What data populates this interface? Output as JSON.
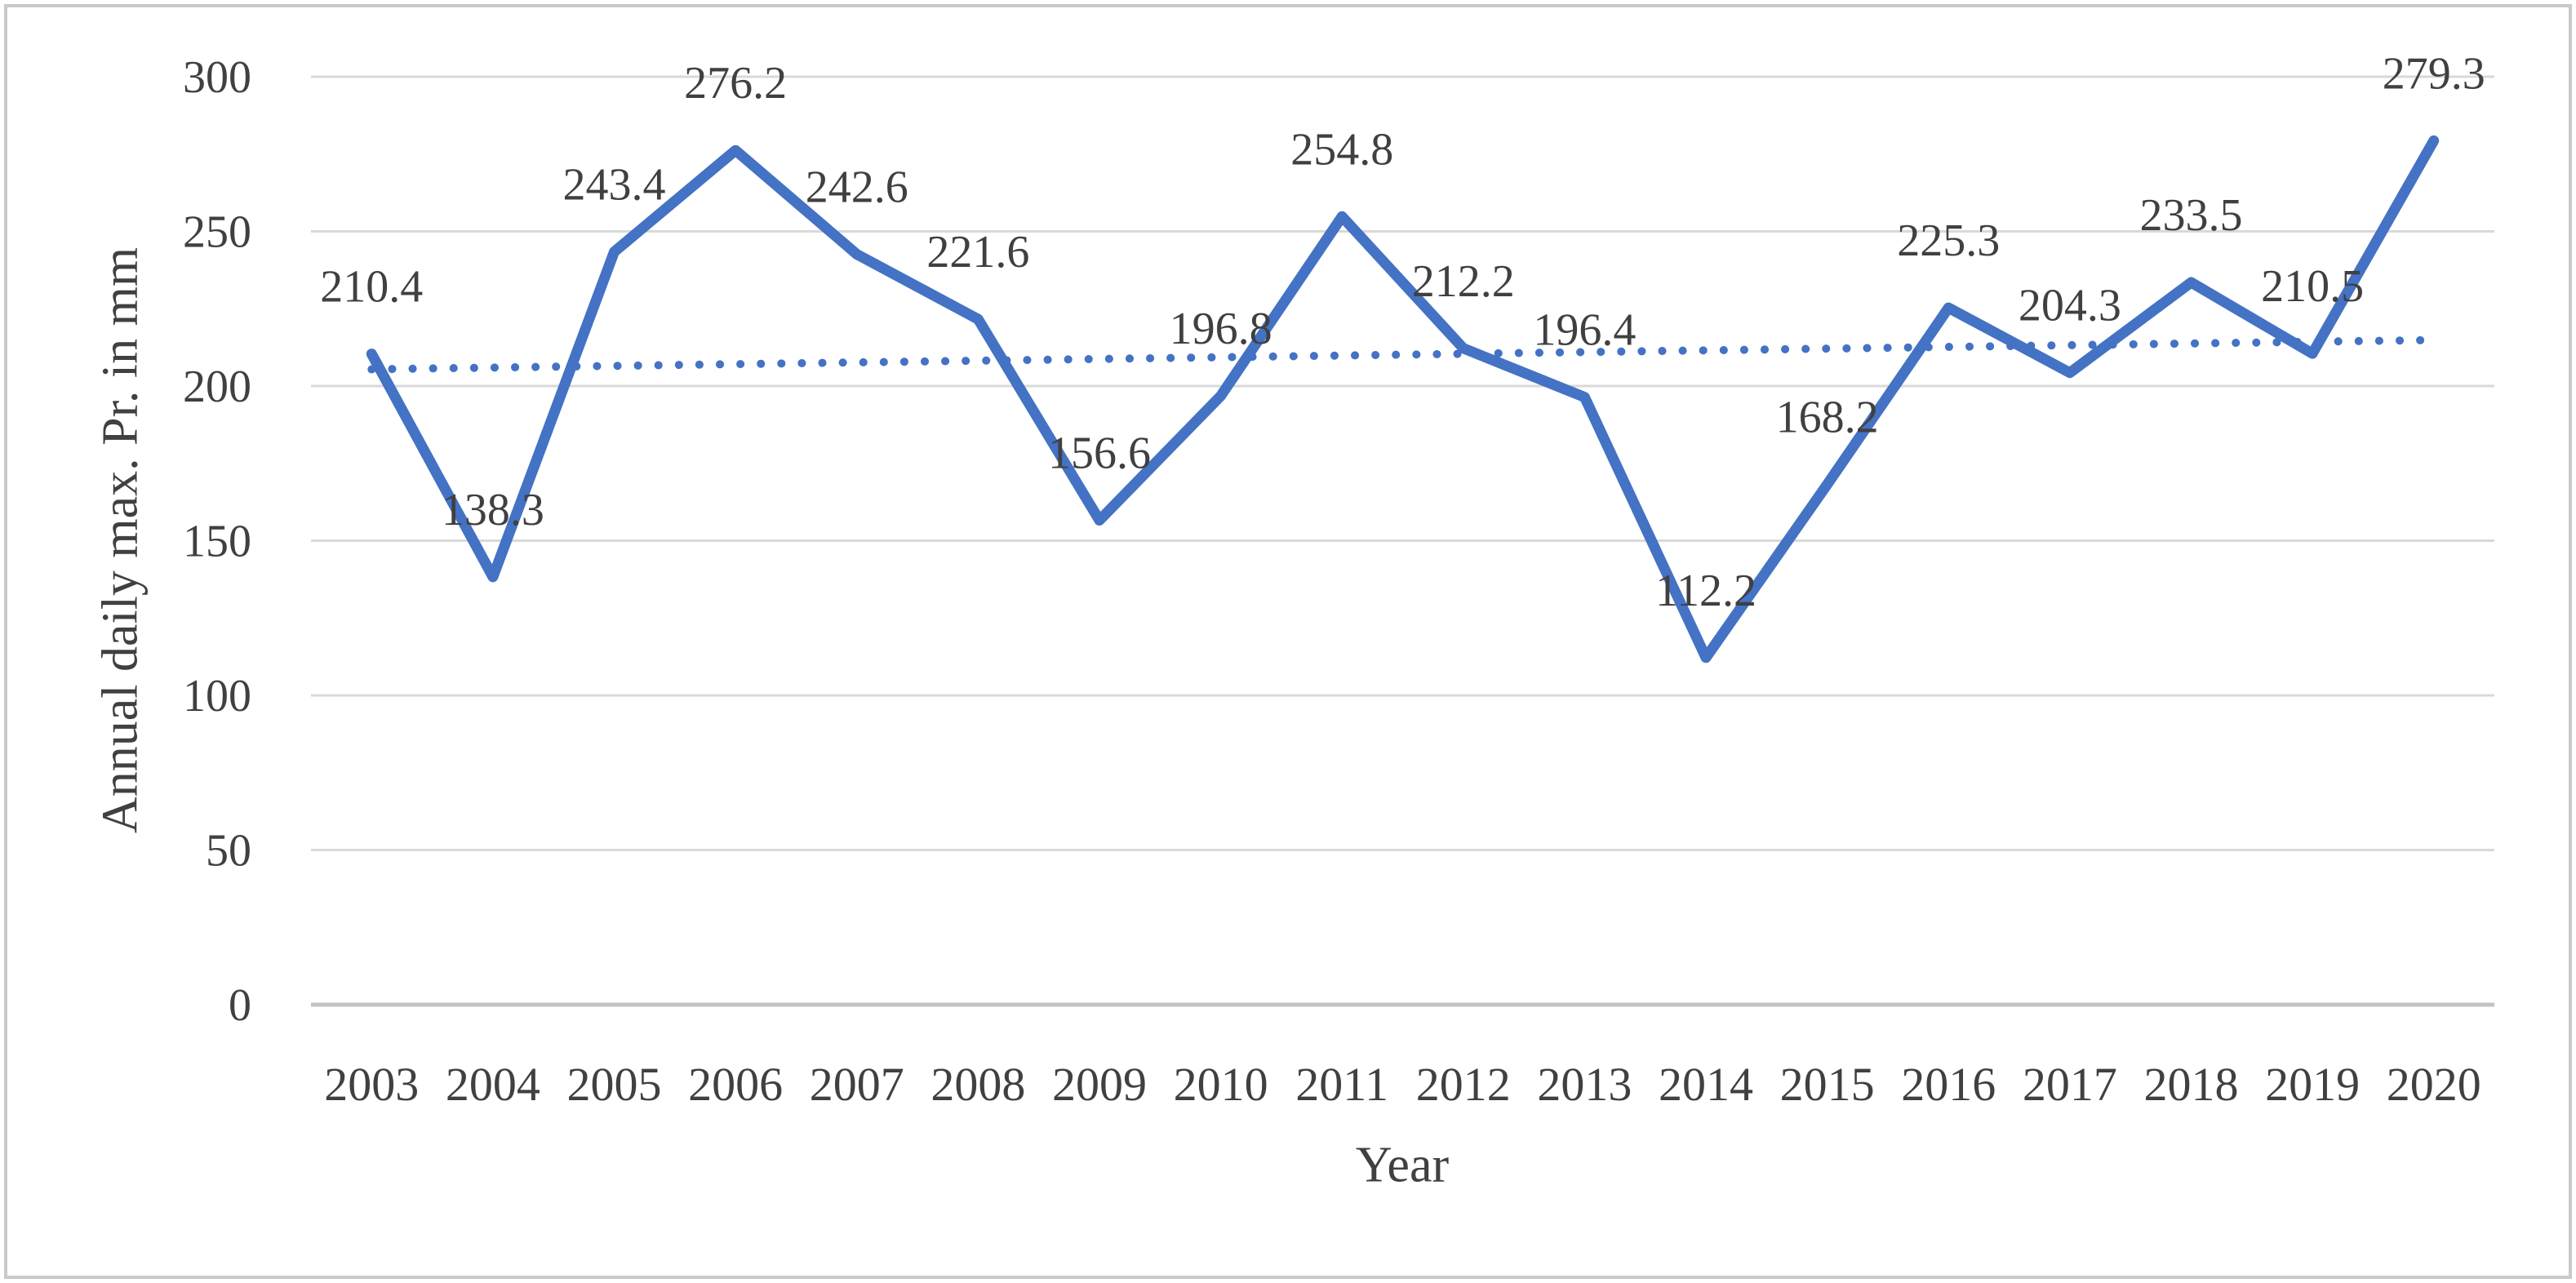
{
  "figure": {
    "background": "#ffffff",
    "border_color": "#c9c9c9"
  },
  "chart_data": {
    "type": "line",
    "title": "",
    "xlabel": "Year",
    "ylabel": "Annual daily max. Pr. in mm",
    "categories": [
      "2003",
      "2004",
      "2005",
      "2006",
      "2007",
      "2008",
      "2009",
      "2010",
      "2011",
      "2012",
      "2013",
      "2014",
      "2015",
      "2016",
      "2017",
      "2018",
      "2019",
      "2020"
    ],
    "series": [
      {
        "values": [
          210.4,
          138.3,
          243.4,
          276.2,
          242.6,
          221.6,
          156.6,
          196.8,
          254.8,
          212.2,
          196.4,
          112.2,
          168.2,
          225.3,
          204.3,
          233.5,
          210.5,
          279.3
        ],
        "color": "#4472C4",
        "line_width": 13,
        "data_labels": true
      }
    ],
    "trendline": {
      "type": "linear",
      "style": "dotted",
      "color": "#4472C4"
    },
    "ylim": [
      0,
      300
    ],
    "yticks": [
      0,
      50,
      100,
      150,
      200,
      250,
      300
    ],
    "grid": "horizontal",
    "gridline_color": "#d9d9d9",
    "axis_line_color": "#c3c3c3",
    "text_color": "#404040",
    "legend": "none"
  }
}
